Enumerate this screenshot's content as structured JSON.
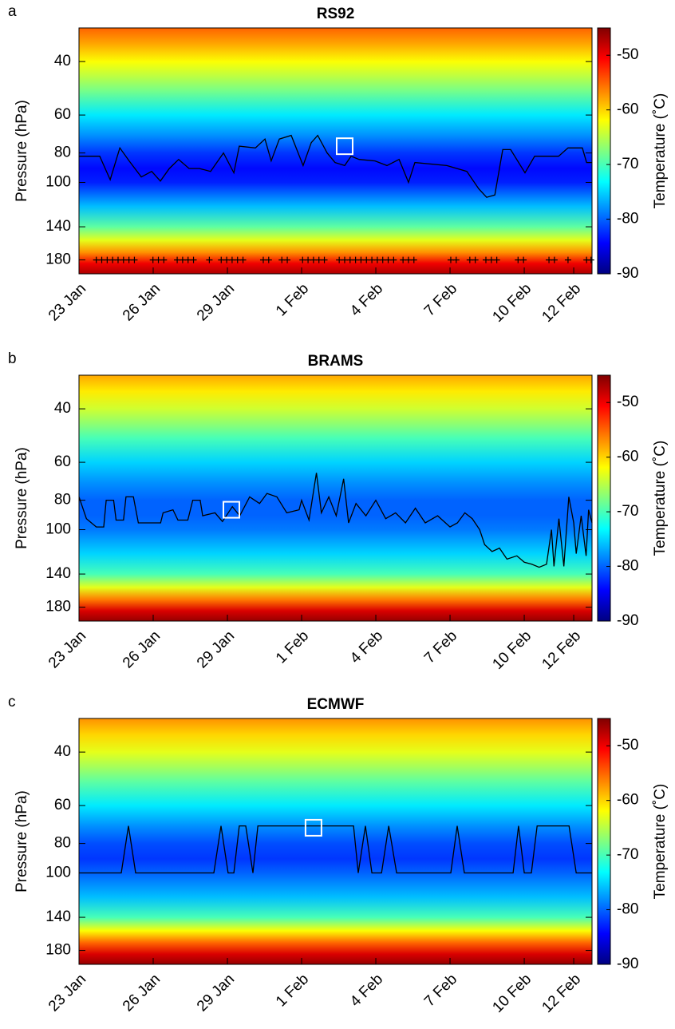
{
  "chart_data": [
    {
      "type": "heatmap",
      "panel_label": "a",
      "title": "RS92",
      "ylabel": "Pressure (hPa)",
      "colorbar_label": "Temperature (˚C)",
      "xlim": [
        0,
        20.74
      ],
      "xticks": [
        {
          "value": 0,
          "label": "23 Jan"
        },
        {
          "value": 3,
          "label": "26 Jan"
        },
        {
          "value": 6,
          "label": "29 Jan"
        },
        {
          "value": 9,
          "label": "1 Feb"
        },
        {
          "value": 12,
          "label": "4 Feb"
        },
        {
          "value": 15,
          "label": "7 Feb"
        },
        {
          "value": 18,
          "label": "10 Feb"
        },
        {
          "value": 20,
          "label": "12 Feb"
        }
      ],
      "ylim": [
        31,
        200
      ],
      "yticks": [
        40,
        60,
        80,
        100,
        140,
        180
      ],
      "log_y": true,
      "y_reversed": true,
      "clim": [
        -90,
        -45
      ],
      "cticks": [
        -90,
        -80,
        -70,
        -60,
        -50
      ],
      "colormap": "jet",
      "profile": {
        "pressure": [
          31,
          35,
          40,
          45,
          50,
          60,
          70,
          80,
          90,
          100,
          120,
          140,
          155,
          170,
          185,
          200
        ],
        "temperature": [
          -55,
          -58,
          -62,
          -65,
          -68,
          -74,
          -78,
          -82,
          -84,
          -83,
          -76,
          -69,
          -63,
          -57,
          -50,
          -47
        ]
      },
      "line": {
        "color": "#000000",
        "x": [
          0,
          0.84,
          1.26,
          1.65,
          2.03,
          2.52,
          2.94,
          3.29,
          3.65,
          4.03,
          4.45,
          4.87,
          5.32,
          5.84,
          6.26,
          6.48,
          7.13,
          7.52,
          7.77,
          8.1,
          8.58,
          9.06,
          9.39,
          9.65,
          10.03,
          10.35,
          10.74,
          11.0,
          11.32,
          11.97,
          12.45,
          12.94,
          13.32,
          13.58,
          14.87,
          15.68,
          16.16,
          16.48,
          16.81,
          17.13,
          17.45,
          18.03,
          18.42,
          19.39,
          19.77,
          20.35,
          20.52,
          20.74
        ],
        "y": [
          82,
          82,
          98,
          77,
          85,
          96,
          92,
          99,
          90,
          84,
          90,
          90,
          92,
          80,
          93,
          76,
          77,
          72,
          85,
          72,
          70,
          88,
          74,
          70,
          80,
          86,
          88,
          82,
          84,
          85,
          88,
          84,
          100,
          86,
          88,
          92,
          105,
          112,
          110,
          78,
          78,
          93,
          82,
          82,
          77,
          77,
          86,
          86
        ]
      },
      "markers": {
        "symbol": "+",
        "y": 180,
        "x": [
          0.7,
          0.92,
          1.14,
          1.36,
          1.58,
          1.8,
          2.02,
          2.24,
          2.99,
          3.21,
          3.43,
          3.97,
          4.19,
          4.41,
          4.63,
          5.27,
          5.75,
          5.97,
          6.19,
          6.41,
          6.63,
          7.45,
          7.67,
          8.2,
          8.42,
          9.04,
          9.26,
          9.48,
          9.7,
          9.92,
          10.52,
          10.74,
          10.96,
          11.18,
          11.4,
          11.62,
          11.84,
          12.06,
          12.28,
          12.5,
          12.72,
          13.1,
          13.32,
          13.54,
          15.03,
          15.25,
          15.8,
          16.02,
          16.45,
          16.67,
          16.89,
          17.75,
          17.97,
          19.0,
          19.22,
          19.77,
          20.52,
          20.7
        ]
      },
      "box": {
        "x": 10.74,
        "y": 76
      }
    },
    {
      "type": "heatmap",
      "panel_label": "b",
      "title": "BRAMS",
      "ylabel": "Pressure (hPa)",
      "colorbar_label": "Temperature (˚C)",
      "xlim": [
        0,
        20.74
      ],
      "xticks": [
        {
          "value": 0,
          "label": "23 Jan"
        },
        {
          "value": 3,
          "label": "26 Jan"
        },
        {
          "value": 6,
          "label": "29 Jan"
        },
        {
          "value": 9,
          "label": "1 Feb"
        },
        {
          "value": 12,
          "label": "4 Feb"
        },
        {
          "value": 15,
          "label": "7 Feb"
        },
        {
          "value": 18,
          "label": "10 Feb"
        },
        {
          "value": 20,
          "label": "12 Feb"
        }
      ],
      "ylim": [
        31,
        200
      ],
      "yticks": [
        40,
        60,
        80,
        100,
        140,
        180
      ],
      "log_y": true,
      "y_reversed": true,
      "clim": [
        -90,
        -45
      ],
      "cticks": [
        -90,
        -80,
        -70,
        -60,
        -50
      ],
      "colormap": "jet",
      "profile": {
        "pressure": [
          31,
          35,
          40,
          45,
          50,
          60,
          70,
          80,
          90,
          100,
          120,
          140,
          155,
          170,
          185,
          200
        ],
        "temperature": [
          -58,
          -61,
          -64,
          -67,
          -70,
          -75,
          -78,
          -80,
          -80,
          -79,
          -75,
          -70,
          -63,
          -56,
          -49,
          -46
        ]
      },
      "line": {
        "color": "#000000",
        "x": [
          0,
          0.3,
          0.7,
          1.0,
          1.1,
          1.4,
          1.5,
          1.8,
          1.9,
          2.2,
          2.4,
          3.3,
          3.4,
          3.8,
          4.0,
          4.4,
          4.6,
          4.9,
          5.0,
          5.5,
          5.8,
          6.2,
          6.5,
          6.9,
          7.3,
          7.6,
          8.0,
          8.4,
          8.9,
          9.0,
          9.3,
          9.6,
          9.8,
          10.1,
          10.4,
          10.7,
          10.9,
          11.2,
          11.6,
          12.0,
          12.4,
          12.8,
          13.2,
          13.6,
          14.0,
          14.5,
          15.0,
          15.3,
          15.6,
          15.9,
          16.2,
          16.4,
          16.7,
          17.0,
          17.3,
          17.7,
          18.0,
          18.3,
          18.6,
          18.9,
          19.1,
          19.2,
          19.4,
          19.6,
          19.8,
          20.0,
          20.1,
          20.3,
          20.5,
          20.6,
          20.74
        ],
        "y": [
          78,
          92,
          98,
          98,
          80,
          80,
          93,
          93,
          78,
          78,
          95,
          95,
          88,
          86,
          93,
          93,
          80,
          80,
          90,
          88,
          94,
          84,
          90,
          78,
          82,
          76,
          78,
          88,
          86,
          80,
          93,
          65,
          88,
          78,
          90,
          68,
          95,
          82,
          90,
          80,
          92,
          88,
          95,
          85,
          95,
          90,
          98,
          95,
          88,
          92,
          100,
          112,
          118,
          115,
          125,
          122,
          128,
          130,
          133,
          130,
          100,
          132,
          92,
          132,
          78,
          95,
          120,
          90,
          122,
          86,
          95
        ]
      },
      "box": {
        "x": 6.16,
        "y": 86
      }
    },
    {
      "type": "heatmap",
      "panel_label": "c",
      "title": "ECMWF",
      "ylabel": "Pressure (hPa)",
      "colorbar_label": "Temperature (˚C)",
      "xlim": [
        0,
        20.74
      ],
      "xticks": [
        {
          "value": 0,
          "label": "23 Jan"
        },
        {
          "value": 3,
          "label": "26 Jan"
        },
        {
          "value": 6,
          "label": "29 Jan"
        },
        {
          "value": 9,
          "label": "1 Feb"
        },
        {
          "value": 12,
          "label": "4 Feb"
        },
        {
          "value": 15,
          "label": "7 Feb"
        },
        {
          "value": 18,
          "label": "10 Feb"
        },
        {
          "value": 20,
          "label": "12 Feb"
        }
      ],
      "ylim": [
        31,
        200
      ],
      "yticks": [
        40,
        60,
        80,
        100,
        140,
        180
      ],
      "log_y": true,
      "y_reversed": true,
      "clim": [
        -90,
        -45
      ],
      "cticks": [
        -90,
        -80,
        -70,
        -60,
        -50
      ],
      "colormap": "jet",
      "profile": {
        "pressure": [
          31,
          35,
          40,
          45,
          50,
          60,
          70,
          80,
          90,
          100,
          120,
          140,
          155,
          170,
          185,
          200
        ],
        "temperature": [
          -57,
          -60,
          -63,
          -66,
          -69,
          -74,
          -78,
          -81,
          -82,
          -80,
          -76,
          -70,
          -62,
          -55,
          -49,
          -46
        ]
      },
      "line": {
        "color": "#000000",
        "x": [
          0,
          1.71,
          2.0,
          2.29,
          5.45,
          5.74,
          6.03,
          6.26,
          6.48,
          6.74,
          7.03,
          7.23,
          11.1,
          11.29,
          11.58,
          11.84,
          12.23,
          12.52,
          12.84,
          15.03,
          15.29,
          15.58,
          17.55,
          17.77,
          18.0,
          18.29,
          18.52,
          19.81,
          20.1,
          20.74
        ],
        "y": [
          100,
          100,
          70,
          100,
          100,
          70,
          100,
          100,
          70,
          70,
          100,
          70,
          70,
          100,
          70,
          100,
          100,
          70,
          100,
          100,
          70,
          100,
          100,
          70,
          100,
          100,
          70,
          70,
          100,
          100
        ]
      },
      "box": {
        "x": 9.48,
        "y": 71
      }
    }
  ]
}
